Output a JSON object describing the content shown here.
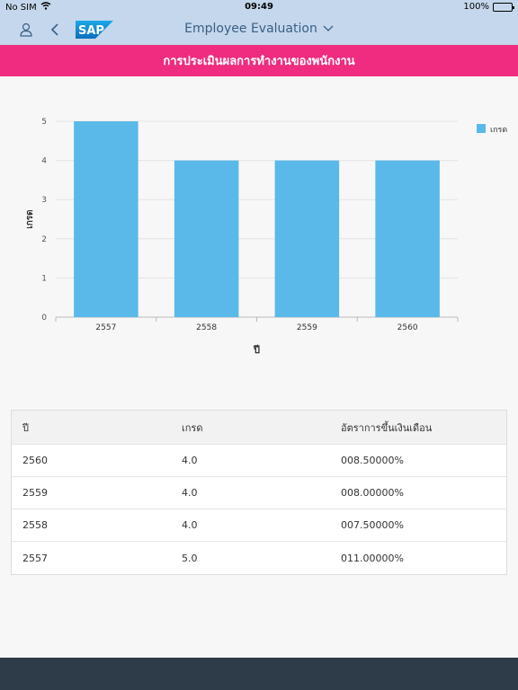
{
  "status_bar": {
    "carrier": "No SIM",
    "time": "09:49",
    "battery": "100%",
    "battery_level": 1.0
  },
  "header": {
    "title": "Employee Evaluation",
    "profile_icon": "person-icon",
    "back_icon": "chevron-left-icon",
    "logo": "SAP",
    "dropdown_icon": "chevron-down-icon"
  },
  "banner": {
    "title": "การประเมินผลการทำงานของพนักงาน"
  },
  "chart_data": {
    "type": "bar",
    "categories": [
      "2557",
      "2558",
      "2559",
      "2560"
    ],
    "series": [
      {
        "name": "เกรด",
        "values": [
          5,
          4,
          4,
          4
        ],
        "color": "#5ab9e8"
      }
    ],
    "xlabel": "ปี",
    "ylabel": "เกรด",
    "ylim": [
      0,
      5
    ],
    "yticks": [
      "0",
      "1",
      "2",
      "3",
      "4",
      "5"
    ],
    "grid": true,
    "legend": "top-right"
  },
  "table": {
    "headers": [
      "ปี",
      "เกรด",
      "อัตราการขึ้นเงินเดือน"
    ],
    "rows": [
      [
        "2560",
        "4.0",
        "008.50000%"
      ],
      [
        "2559",
        "4.0",
        "008.00000%"
      ],
      [
        "2558",
        "4.0",
        "007.50000%"
      ],
      [
        "2557",
        "5.0",
        "011.00000%"
      ]
    ]
  },
  "colors": {
    "header_bg": "#c4d7ec",
    "banner_bg": "#ef2c7f",
    "bar": "#5ab9e8",
    "footer_bg": "#2e3b48"
  }
}
